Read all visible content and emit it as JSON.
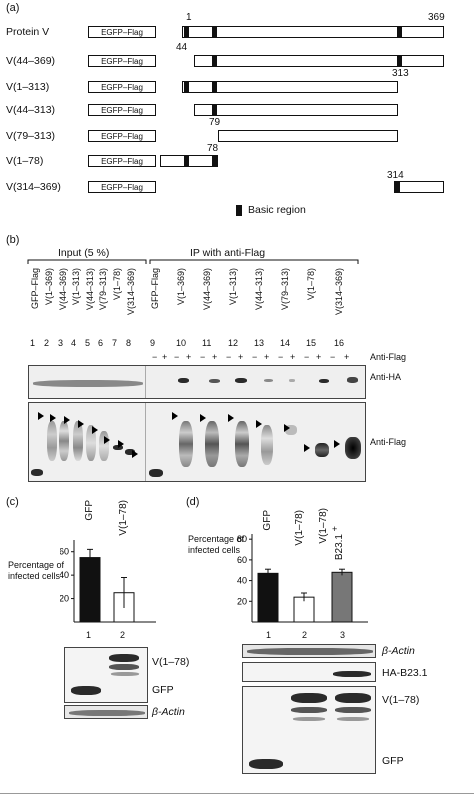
{
  "panel_a": {
    "label": "(a)",
    "tick_1": "1",
    "tick_369": "369",
    "constructs": [
      {
        "name": "Protein V",
        "tag": "EGFP–Flag"
      },
      {
        "name": "V(44–369)",
        "tag": "EGFP–Flag",
        "start_label": "44"
      },
      {
        "name": "V(1–313)",
        "tag": "EGFP–Flag",
        "end_label": "313"
      },
      {
        "name": "V(44–313)",
        "tag": "EGFP–Flag"
      },
      {
        "name": "V(79–313)",
        "tag": "EGFP–Flag",
        "start_label": "79"
      },
      {
        "name": "V(1–78)",
        "tag": "EGFP–Flag",
        "end_label": "78"
      },
      {
        "name": "V(314–369)",
        "tag": "EGFP–Flag",
        "start_label": "314"
      }
    ],
    "legend": "Basic region"
  },
  "panel_b": {
    "label": "(b)",
    "group_input": "Input (5 %)",
    "group_ip": "IP with anti-Flag",
    "lane_labels": [
      "GFP–Flag",
      "V(1–369)",
      "V(44–369)",
      "V(1–313)",
      "V(44–313)",
      "V(79–313)",
      "V(1–78)",
      "V(314–369)",
      "GFP–Flag",
      "V(1–369)",
      "V(44–369)",
      "V(1–313)",
      "V(44–313)",
      "V(79–313)",
      "V(1–78)",
      "V(314–369)"
    ],
    "lane_numbers": [
      "1",
      "2",
      "3",
      "4",
      "5",
      "6",
      "7",
      "8",
      "9",
      "10",
      "11",
      "12",
      "13",
      "14",
      "15",
      "16"
    ],
    "minus": "−",
    "plus": "+",
    "row_label_antiflag": "Anti-Flag",
    "blot1_label": "Anti-HA",
    "blot2_label": "Anti-Flag"
  },
  "panel_c": {
    "label": "(c)",
    "ylabel_line1": "Percentage of",
    "ylabel_line2": "infected cells",
    "yticks": [
      "20",
      "40",
      "60"
    ],
    "bar_labels": [
      "GFP",
      "V(1–78)"
    ],
    "lane_numbers": [
      "1",
      "2"
    ],
    "blot_labels": [
      "V(1–78)",
      "GFP",
      "β-Actin"
    ]
  },
  "panel_d": {
    "label": "(d)",
    "ylabel_line1": "Percentage of",
    "ylabel_line2": "infected cells",
    "yticks": [
      "20",
      "40",
      "60",
      "80"
    ],
    "bar_labels": [
      "GFP",
      "V(1–78)",
      "V(1–78)"
    ],
    "bar3_extra": "+",
    "bar3_extra2": "B23.1",
    "lane_numbers": [
      "1",
      "2",
      "3"
    ],
    "blot_labels": [
      "β-Actin",
      "HA-B23.1",
      "V(1–78)",
      "GFP"
    ]
  },
  "chart_data": [
    {
      "type": "bar",
      "panel": "(c)",
      "categories": [
        "GFP",
        "V(1–78)"
      ],
      "values": [
        55,
        25
      ],
      "errors": [
        7,
        13
      ],
      "colors": [
        "#111111",
        "#ffffff"
      ],
      "ylabel": "Percentage of infected cells",
      "ylim": [
        0,
        70
      ]
    },
    {
      "type": "bar",
      "panel": "(d)",
      "categories": [
        "GFP",
        "V(1–78)",
        "V(1–78) + B23.1"
      ],
      "values": [
        47,
        24,
        48
      ],
      "errors": [
        4,
        4,
        3
      ],
      "colors": [
        "#111111",
        "#ffffff",
        "#777777"
      ],
      "ylabel": "Percentage of infected cells",
      "ylim": [
        0,
        85
      ]
    }
  ]
}
